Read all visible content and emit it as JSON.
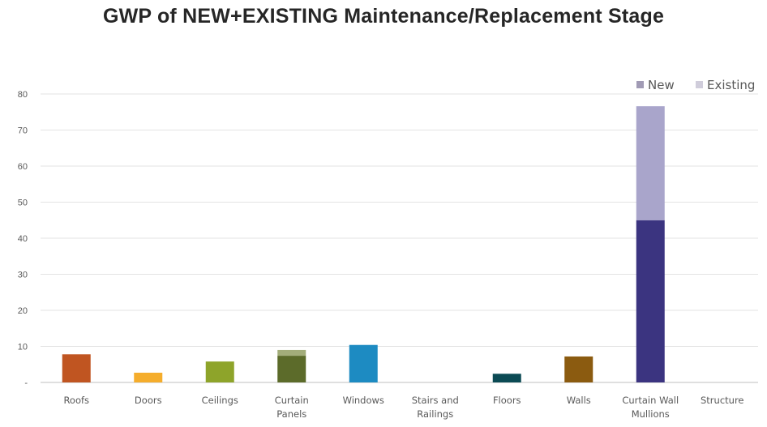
{
  "chart_data": {
    "type": "bar",
    "stacked": true,
    "title": "GWP of NEW+EXISTING Maintenance/Replacement Stage",
    "xlabel": "",
    "ylabel": "",
    "ylim": [
      0,
      80
    ],
    "yticks": [
      {
        "value": 0,
        "label": "-"
      },
      {
        "value": 10,
        "label": "10"
      },
      {
        "value": 20,
        "label": "20"
      },
      {
        "value": 30,
        "label": "30"
      },
      {
        "value": 40,
        "label": "40"
      },
      {
        "value": 50,
        "label": "50"
      },
      {
        "value": 60,
        "label": "60"
      },
      {
        "value": 70,
        "label": "70"
      },
      {
        "value": 80,
        "label": "80"
      }
    ],
    "grid": true,
    "legend": {
      "position": "top-right",
      "entries": [
        "New",
        "Existing"
      ]
    },
    "categories": [
      [
        "Roofs"
      ],
      [
        "Doors"
      ],
      [
        "Ceilings"
      ],
      [
        "Curtain",
        "Panels"
      ],
      [
        "Windows"
      ],
      [
        "Stairs and",
        "Railings"
      ],
      [
        "Floors"
      ],
      [
        "Walls"
      ],
      [
        "Curtain Wall",
        "Mullions"
      ],
      [
        "Structure"
      ]
    ],
    "series": [
      {
        "name": "New",
        "values": [
          7.8,
          2.7,
          5.8,
          7.4,
          10.4,
          0,
          2.4,
          7.2,
          45,
          0
        ]
      },
      {
        "name": "Existing",
        "values": [
          0,
          0,
          0,
          1.6,
          0,
          0,
          0,
          0,
          31.6,
          0
        ]
      }
    ],
    "colors": {
      "new": [
        "#c05521",
        "#f5ad2c",
        "#8ea42a",
        "#5c6b2a",
        "#1d8bc2",
        "#7a7a7a",
        "#0b4a54",
        "#8b5b10",
        "#3b3480",
        "#7a7a7a"
      ],
      "existing": [
        "#d9a38a",
        "#f8d39a",
        "#c7d196",
        "#a3ad7a",
        "#8cc3e1",
        "#bbbbbb",
        "#7fa3a9",
        "#c4a775",
        "#a9a5cb",
        "#bbbbbb"
      ],
      "legend_new": "#a19bb5",
      "legend_existing": "#d0cddb"
    }
  }
}
